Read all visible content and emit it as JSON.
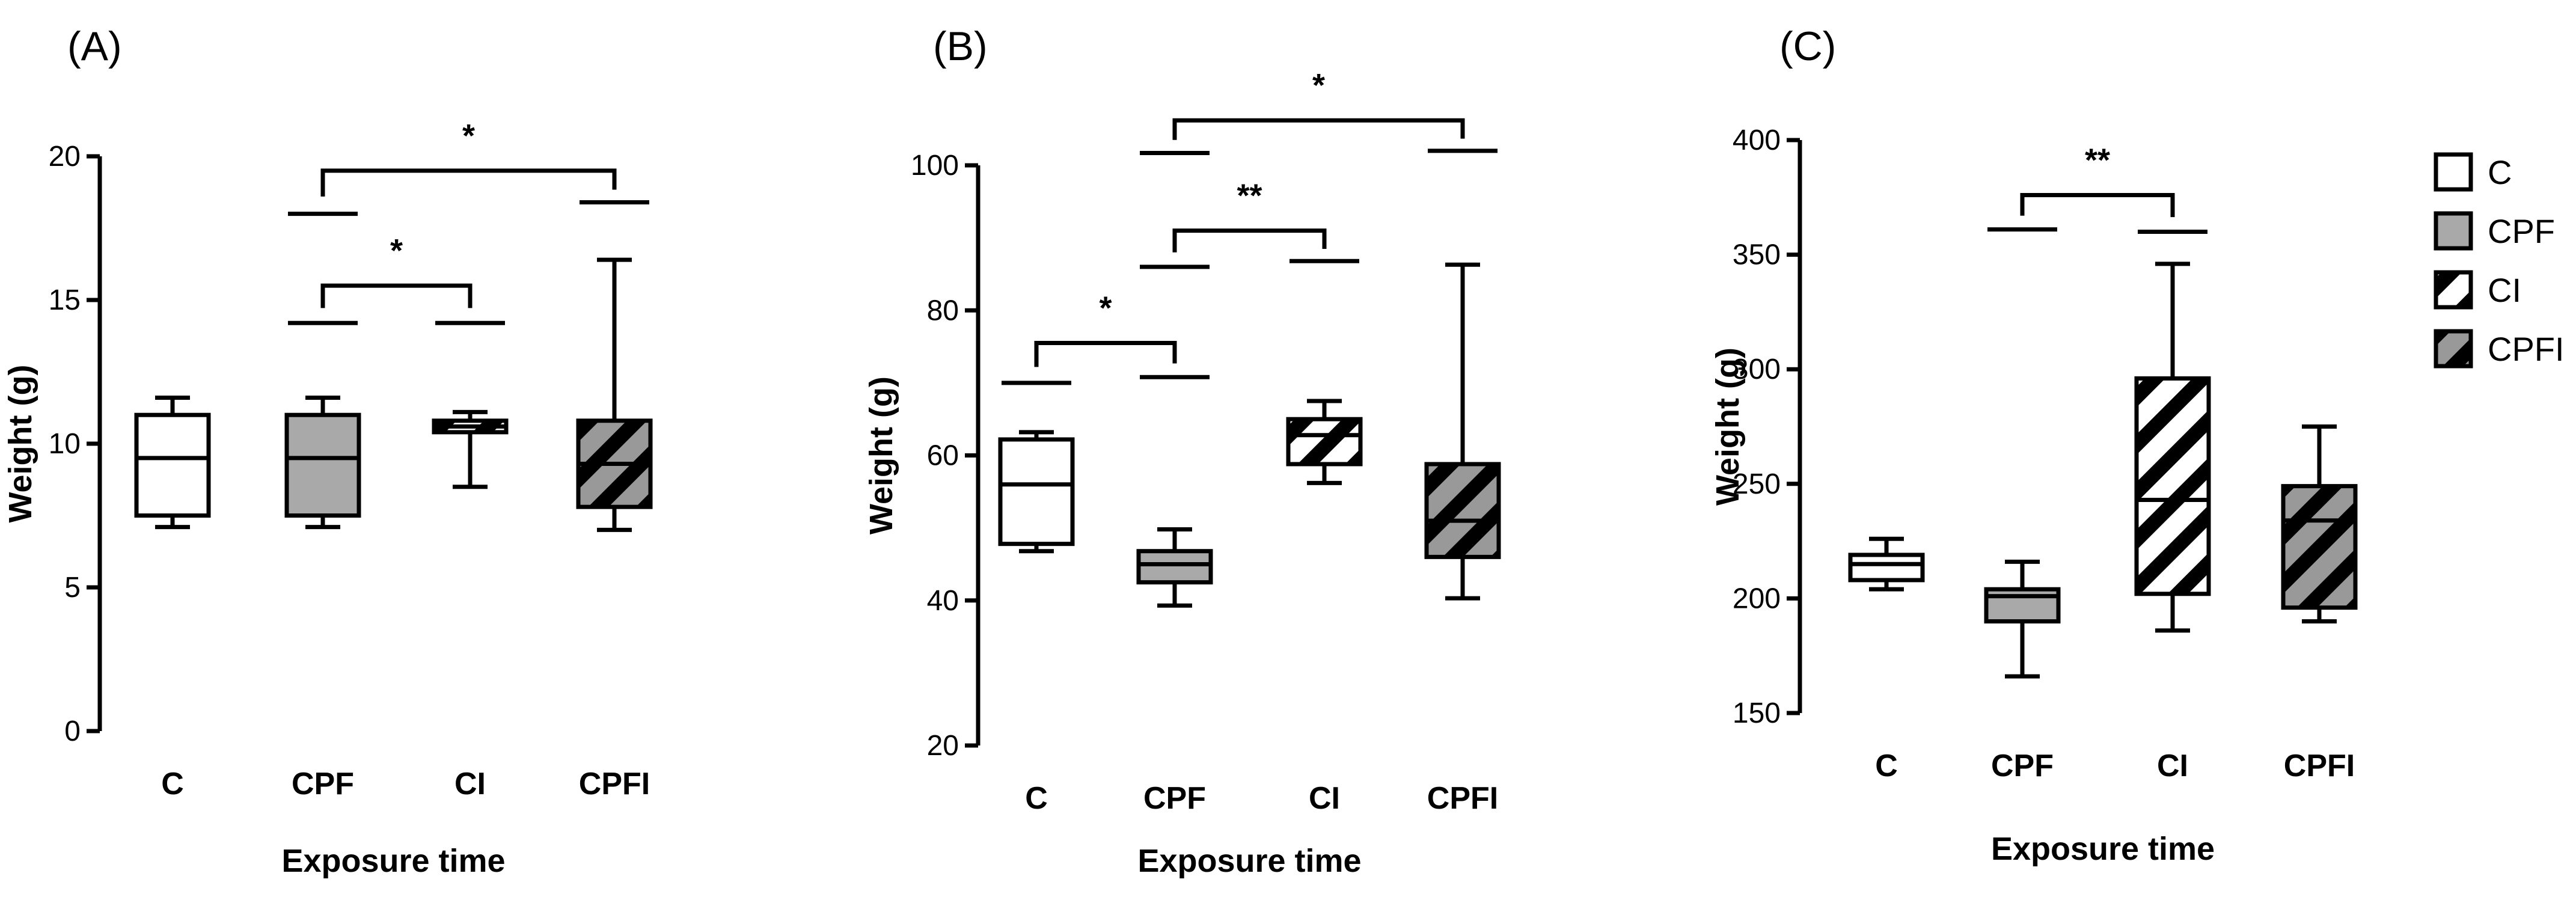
{
  "colors": {
    "C": "#ffffff",
    "CPF": "#a9a9a9",
    "CI": "#ffffff",
    "CPFI": "#999999",
    "stroke": "#000000"
  },
  "legend": {
    "items": [
      {
        "label": "C",
        "fill": "white",
        "hatch": false
      },
      {
        "label": "CPF",
        "fill": "gray",
        "hatch": false
      },
      {
        "label": "CI",
        "fill": "white",
        "hatch": true
      },
      {
        "label": "CPFI",
        "fill": "gray",
        "hatch": true
      }
    ]
  },
  "chart_data": [
    {
      "type": "box",
      "panel_label": "(A)",
      "xlabel": "Exposure time",
      "ylabel": "Weight (g)",
      "ylim": [
        0,
        20
      ],
      "yticks": [
        0,
        5,
        10,
        15,
        20
      ],
      "categories": [
        "C",
        "CPF",
        "CI",
        "CPFI"
      ],
      "boxes": [
        {
          "category": "C",
          "min": 7.1,
          "q1": 7.5,
          "median": 9.5,
          "q3": 11.0,
          "max": 11.6
        },
        {
          "category": "CPF",
          "min": 7.1,
          "q1": 7.5,
          "median": 9.5,
          "q3": 11.0,
          "max": 11.6
        },
        {
          "category": "CI",
          "min": 8.5,
          "q1": 10.4,
          "median": 10.6,
          "q3": 10.8,
          "max": 11.1
        },
        {
          "category": "CPFI",
          "min": 7.0,
          "q1": 7.8,
          "median": 9.3,
          "q3": 10.8,
          "max": 16.4
        }
      ],
      "comparisons": [
        {
          "from": "CPF",
          "to": "CI",
          "label": "*",
          "arm_left": 14.2,
          "arm_right": 14.2,
          "bar": 15.5
        },
        {
          "from": "CPF",
          "to": "CPFI",
          "label": "*",
          "arm_left": 18.0,
          "arm_right": 18.4,
          "bar": 19.5
        }
      ]
    },
    {
      "type": "box",
      "panel_label": "(B)",
      "xlabel": "Exposure time",
      "ylabel": "Weight (g)",
      "ylim": [
        20,
        100
      ],
      "yticks": [
        20,
        40,
        60,
        80,
        100
      ],
      "categories": [
        "C",
        "CPF",
        "CI",
        "CPFI"
      ],
      "boxes": [
        {
          "category": "C",
          "min": 46.8,
          "q1": 47.8,
          "median": 56.0,
          "q3": 62.2,
          "max": 63.2
        },
        {
          "category": "CPF",
          "min": 39.3,
          "q1": 42.5,
          "median": 45.0,
          "q3": 46.8,
          "max": 49.8
        },
        {
          "category": "CI",
          "min": 56.2,
          "q1": 58.8,
          "median": 62.8,
          "q3": 65.0,
          "max": 67.5
        },
        {
          "category": "CPFI",
          "min": 40.3,
          "q1": 46.0,
          "median": 51.0,
          "q3": 58.8,
          "max": 86.3
        }
      ],
      "comparisons": [
        {
          "from": "C",
          "to": "CPF",
          "label": "*",
          "arm_left": 70.0,
          "arm_right": 70.8,
          "bar": 75.5
        },
        {
          "from": "CPF",
          "to": "CI",
          "label": "**",
          "arm_left": 86.0,
          "arm_right": 86.8,
          "bar": 91.0
        },
        {
          "from": "CPF",
          "to": "CPFI",
          "label": "*",
          "arm_left": 101.7,
          "arm_right": 102.0,
          "bar": 106.2
        }
      ]
    },
    {
      "type": "box",
      "panel_label": "(C)",
      "xlabel": "Exposure time",
      "ylabel": "Weight (g)",
      "ylim": [
        150,
        400
      ],
      "yticks": [
        150,
        200,
        250,
        300,
        350,
        400
      ],
      "categories": [
        "C",
        "CPF",
        "CI",
        "CPFI"
      ],
      "boxes": [
        {
          "category": "C",
          "min": 204,
          "q1": 208,
          "median": 215,
          "q3": 219,
          "max": 226
        },
        {
          "category": "CPF",
          "min": 166,
          "q1": 190,
          "median": 201,
          "q3": 204,
          "max": 216
        },
        {
          "category": "CI",
          "min": 186,
          "q1": 202,
          "median": 243,
          "q3": 296,
          "max": 346
        },
        {
          "category": "CPFI",
          "min": 190,
          "q1": 196,
          "median": 234,
          "q3": 249,
          "max": 275
        }
      ],
      "comparisons": [
        {
          "from": "CPF",
          "to": "CI",
          "label": "**",
          "arm_left": 361,
          "arm_right": 360,
          "bar": 376
        }
      ]
    }
  ]
}
